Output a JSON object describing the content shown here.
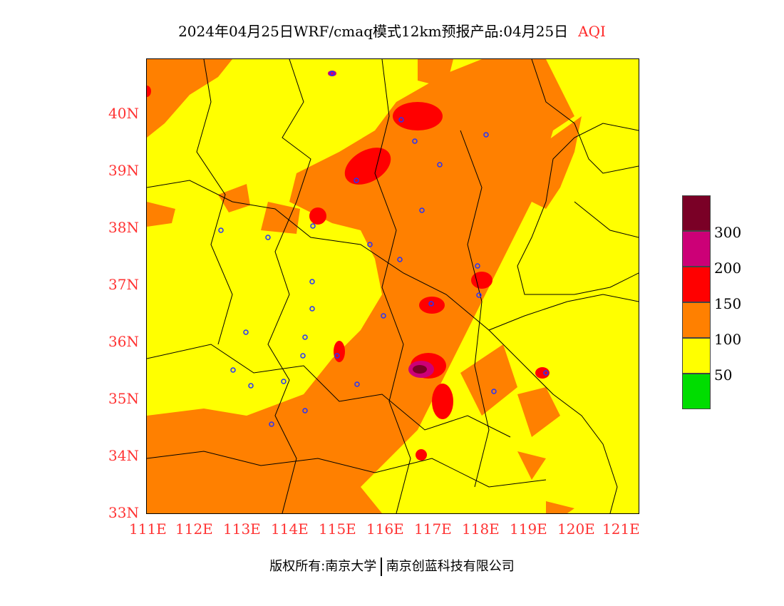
{
  "header": {
    "title": "2024年04月25日WRF/cmaq模式12km预报产品:04月25日",
    "variable": "AQI"
  },
  "map": {
    "x_ticks": [
      "111E",
      "112E",
      "113E",
      "114E",
      "115E",
      "116E",
      "117E",
      "118E",
      "119E",
      "120E",
      "121E"
    ],
    "y_ticks": [
      "33N",
      "34N",
      "35N",
      "36N",
      "37N",
      "38N",
      "39N",
      "40N"
    ],
    "lon_range": [
      111,
      121.3
    ],
    "lat_range": [
      33,
      41
    ]
  },
  "legend": {
    "labels": [
      "50",
      "100",
      "150",
      "200",
      "300"
    ],
    "colors": [
      "#00dd00",
      "#ffff00",
      "#ff8000",
      "#ff0000",
      "#cc0077",
      "#7a0026"
    ]
  },
  "footer": {
    "left": "版权所有:南京大学",
    "right": "南京创蓝科技有限公司"
  }
}
